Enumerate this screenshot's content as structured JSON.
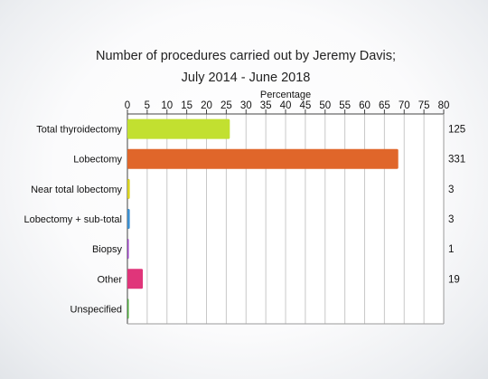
{
  "chart_data": {
    "type": "bar",
    "orientation": "horizontal",
    "title_line1": "Number of procedures carried out by Jeremy Davis;",
    "title_line2": "July 2014 - June 2018",
    "xlabel": "Percentage",
    "ylabel": "",
    "xlim": [
      0,
      80
    ],
    "xticks": [
      0,
      5,
      10,
      15,
      20,
      25,
      30,
      35,
      40,
      45,
      50,
      55,
      60,
      65,
      70,
      75,
      80
    ],
    "grid": true,
    "categories": [
      "Total thyroidectomy",
      "Lobectomy",
      "Near total lobectomy",
      "Lobectomy + sub-total",
      "Biopsy",
      "Other",
      "Unspecified"
    ],
    "values": [
      25.9,
      68.5,
      0.6,
      0.6,
      0.2,
      3.9,
      0.2
    ],
    "counts": [
      "125",
      "331",
      "3",
      "3",
      "1",
      "19",
      ""
    ],
    "colors": [
      "#c2e030",
      "#e0662a",
      "#d9d21e",
      "#3a8fd1",
      "#9a3fc4",
      "#e0357a",
      "#4caa3a"
    ]
  }
}
